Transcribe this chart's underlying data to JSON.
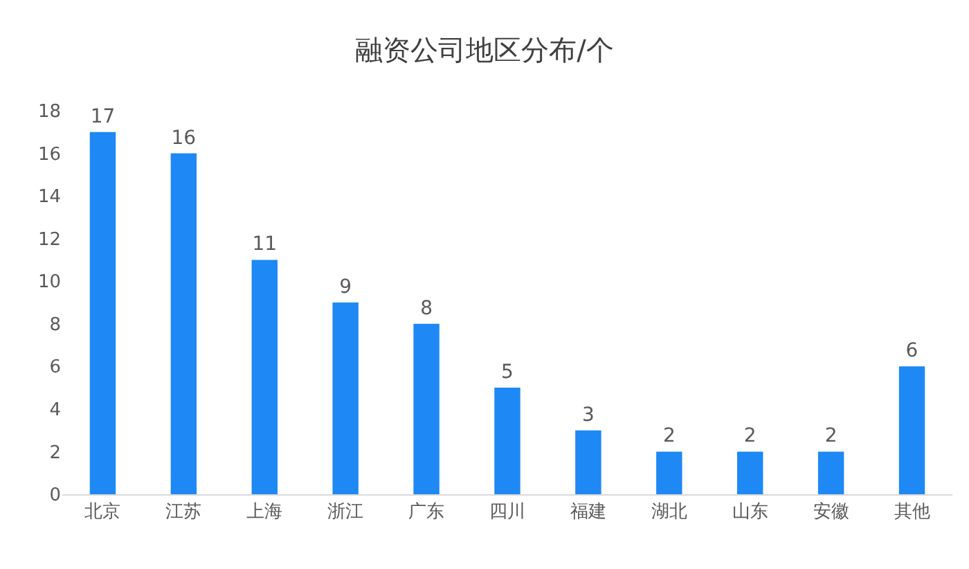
{
  "chart_data": {
    "type": "bar",
    "title": "融资公司地区分布/个",
    "categories": [
      "北京",
      "江苏",
      "上海",
      "浙江",
      "广东",
      "四川",
      "福建",
      "湖北",
      "山东",
      "安徽",
      "其他"
    ],
    "values": [
      17,
      16,
      11,
      9,
      8,
      5,
      3,
      2,
      2,
      2,
      6
    ],
    "color": "#1e88f5",
    "ylim": [
      0,
      18
    ],
    "yticks": [
      0,
      2,
      4,
      6,
      8,
      10,
      12,
      14,
      16,
      18
    ],
    "grid": false,
    "data_labels": true
  }
}
